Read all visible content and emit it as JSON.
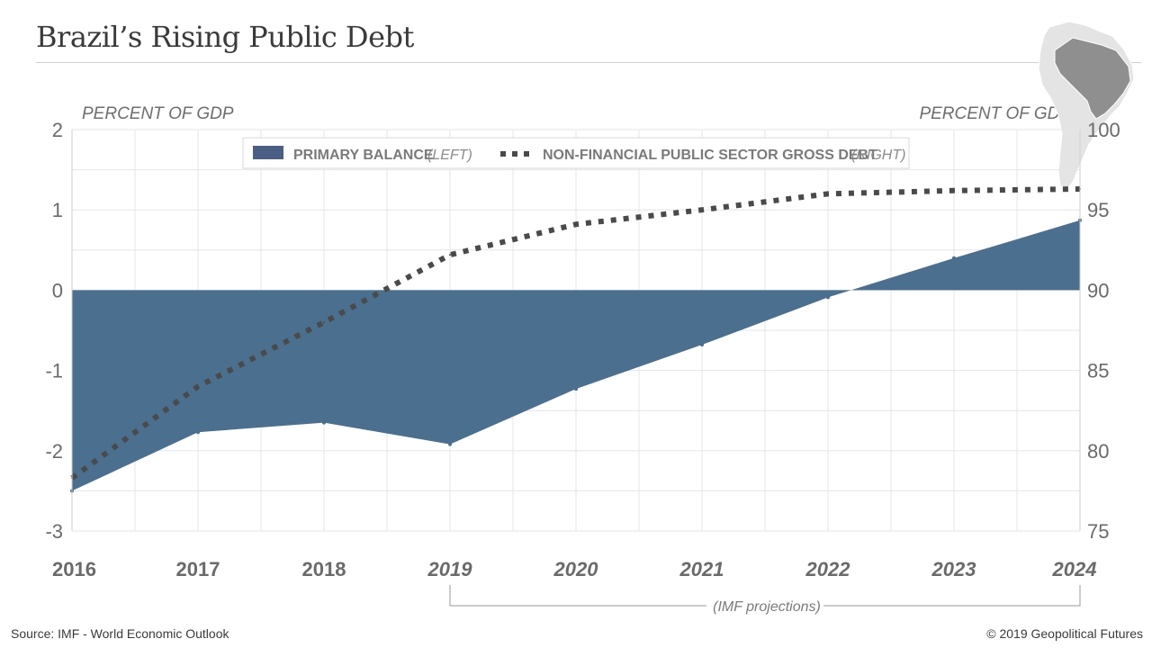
{
  "header": {
    "title": "Brazil’s Rising Public Debt"
  },
  "axis_units": {
    "left": "PERCENT OF GDP",
    "right": "PERCENT OF GDP"
  },
  "footer": {
    "source": "Source: IMF - World Economic Outlook",
    "copyright": "© 2019 Geopolitical Futures"
  },
  "colors": {
    "area": "#4a6f8f",
    "debt_line": "#4a4a4a",
    "grid": "#e6e6e6",
    "legend_swatch": "#4b5f86"
  },
  "chart_data": {
    "type": "area",
    "title": "Brazil’s Rising Public Debt",
    "x": [
      "2016",
      "2017",
      "2018",
      "2019",
      "2020",
      "2021",
      "2022",
      "2023",
      "2024"
    ],
    "x_italic_from": "2019",
    "left_axis": {
      "label": "PERCENT OF GDP",
      "range": [
        -3,
        2
      ],
      "ticks": [
        "2",
        "1",
        "0",
        "-1",
        "-2",
        "-3"
      ]
    },
    "right_axis": {
      "label": "PERCENT OF GDP",
      "range": [
        75,
        100
      ],
      "ticks": [
        "100",
        "95",
        "90",
        "85",
        "80",
        "75"
      ]
    },
    "grid": true,
    "legend_position": "top-center",
    "series": [
      {
        "name": "PRIMARY BALANCE",
        "axis_note": "(LEFT)",
        "type": "area",
        "axis": "left",
        "values": [
          -2.5,
          -1.77,
          -1.65,
          -1.92,
          -1.23,
          -0.68,
          -0.09,
          0.4,
          0.87
        ]
      },
      {
        "name": "NON-FINANCIAL PUBLIC SECTOR GROSS DEBT",
        "axis_note": "(RIGHT)",
        "type": "line",
        "style": "dotted",
        "axis": "right",
        "values": [
          78.3,
          84.0,
          88.0,
          92.2,
          94.1,
          95.0,
          96.0,
          96.2,
          96.3
        ]
      }
    ],
    "annotations": [
      {
        "text": "(IMF projections)",
        "from": "2019",
        "to": "2024"
      }
    ]
  }
}
